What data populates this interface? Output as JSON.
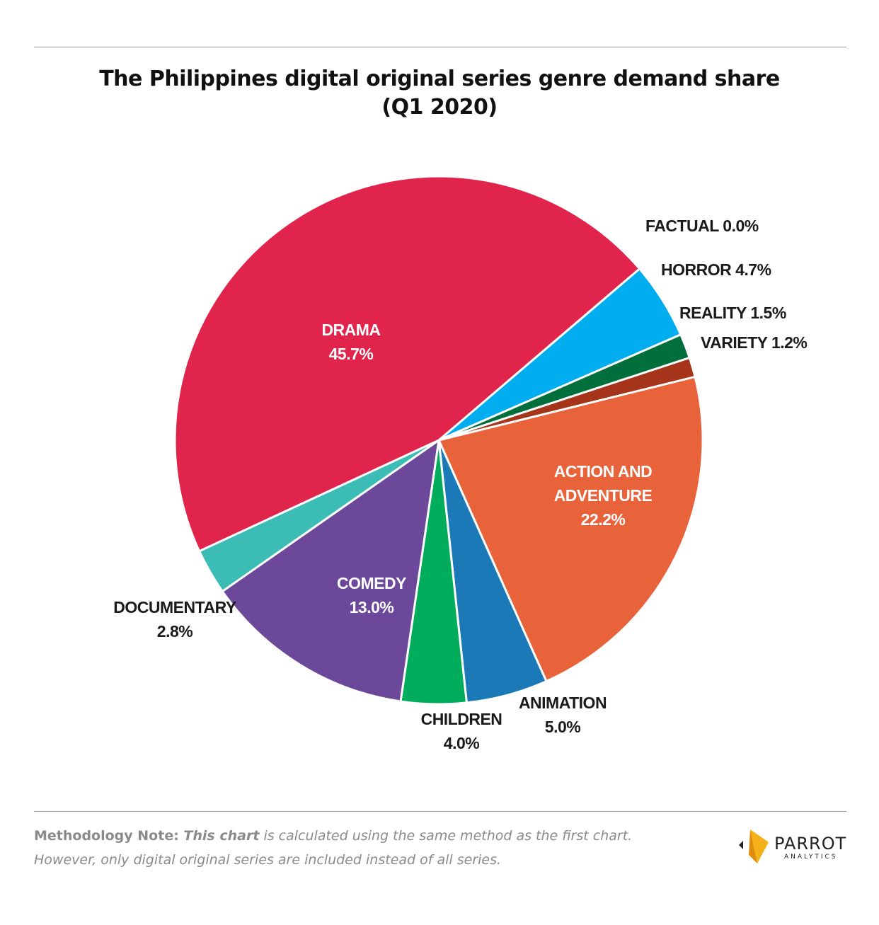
{
  "title": {
    "line1": "The Philippines digital original series genre demand share",
    "line2": "(Q1 2020)"
  },
  "chart_data": {
    "type": "pie",
    "title": "The Philippines digital original series genre demand share (Q1 2020)",
    "slices": [
      {
        "name": "HORROR",
        "label": [
          "HORROR 4.7%"
        ],
        "value": 4.7,
        "color": "#00aeef",
        "label_color": "#1a1a1a",
        "inside": false
      },
      {
        "name": "REALITY",
        "label": [
          "REALITY 1.5%"
        ],
        "value": 1.5,
        "color": "#006f3c",
        "label_color": "#1a1a1a",
        "inside": false
      },
      {
        "name": "VARIETY",
        "label": [
          "VARIETY 1.2%"
        ],
        "value": 1.2,
        "color": "#a6341b",
        "label_color": "#1a1a1a",
        "inside": false
      },
      {
        "name": "ACTION AND ADVENTURE",
        "label": [
          "ACTION AND",
          "ADVENTURE",
          "22.2%"
        ],
        "value": 22.2,
        "color": "#e8623a",
        "label_color": "#ffffff",
        "inside": true
      },
      {
        "name": "ANIMATION",
        "label": [
          "ANIMATION",
          "5.0%"
        ],
        "value": 5.0,
        "color": "#1b79b8",
        "label_color": "#1a1a1a",
        "inside": false
      },
      {
        "name": "CHILDREN",
        "label": [
          "CHILDREN",
          "4.0%"
        ],
        "value": 4.0,
        "color": "#00ad5c",
        "label_color": "#1a1a1a",
        "inside": false
      },
      {
        "name": "COMEDY",
        "label": [
          "COMEDY",
          "13.0%"
        ],
        "value": 13.0,
        "color": "#6b4899",
        "label_color": "#ffffff",
        "inside": true
      },
      {
        "name": "DOCUMENTARY",
        "label": [
          "DOCUMENTARY",
          "2.8%"
        ],
        "value": 2.8,
        "color": "#3bbcb4",
        "label_color": "#1a1a1a",
        "inside": false
      },
      {
        "name": "DRAMA",
        "label": [
          "DRAMA",
          "45.7%"
        ],
        "value": 45.7,
        "color": "#e1244c",
        "label_color": "#ffffff",
        "inside": true
      },
      {
        "name": "FACTUAL",
        "label": [
          "FACTUAL 0.0%"
        ],
        "value": 0.0,
        "color": "#999999",
        "label_color": "#1a1a1a",
        "inside": false
      }
    ],
    "legend": "none"
  },
  "footer": {
    "note_prefix": "Methodology Note: ",
    "note_emphasis": "This chart",
    "note_rest": " is calculated using the same method as the first chart.",
    "note_line2": "However, only digital original series are included instead of all series.",
    "logo_name": "PARROT",
    "logo_sub": "ANALYTICS",
    "logo_icon": "parrot-wing-icon",
    "logo_color": "#f5b11a"
  }
}
